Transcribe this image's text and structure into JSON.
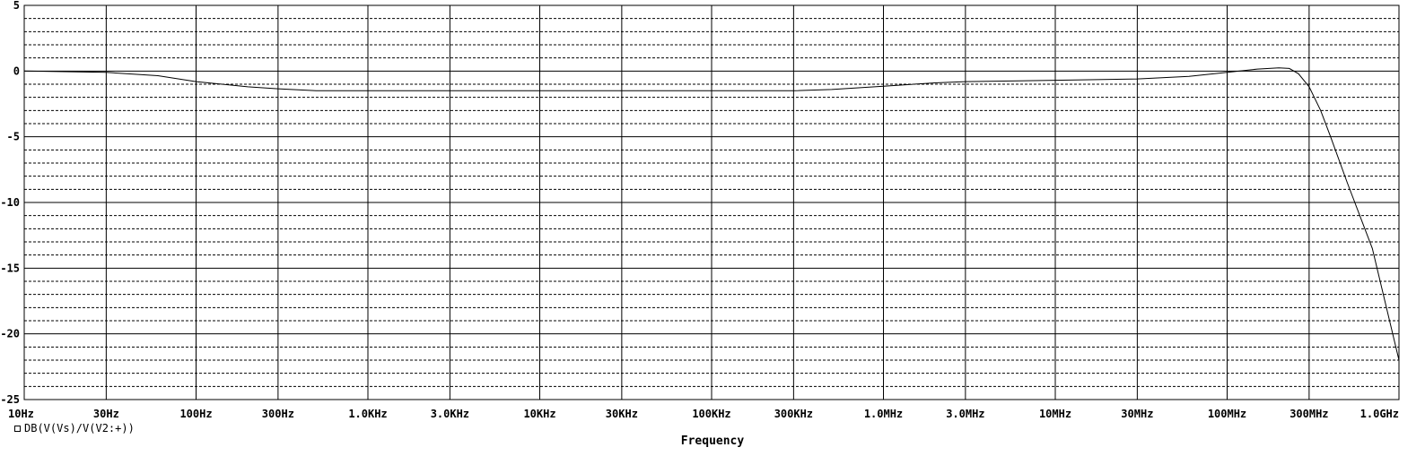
{
  "chart_data": {
    "type": "line",
    "xscale": "log",
    "xlim_hz": [
      10,
      1000000000
    ],
    "ylim": [
      -25,
      5
    ],
    "yticks": [
      5,
      0,
      -5,
      -10,
      -15,
      -20,
      -25
    ],
    "xtick_labels": [
      "10Hz",
      "30Hz",
      "100Hz",
      "300Hz",
      "1.0KHz",
      "3.0KHz",
      "10KHz",
      "30KHz",
      "100KHz",
      "300KHz",
      "1.0MHz",
      "3.0MHz",
      "10MHz",
      "30MHz",
      "100MHz",
      "300MHz",
      "1.0GHz"
    ],
    "xlabel": "Frequency",
    "grid": true,
    "series": [
      {
        "name": "DB(V(Vs)/V(V2:+))",
        "color": "#000000",
        "points": [
          [
            10,
            0.0
          ],
          [
            30,
            -0.1
          ],
          [
            60,
            -0.35
          ],
          [
            100,
            -0.8
          ],
          [
            200,
            -1.2
          ],
          [
            300,
            -1.35
          ],
          [
            500,
            -1.5
          ],
          [
            1000,
            -1.5
          ],
          [
            3000,
            -1.5
          ],
          [
            10000,
            -1.5
          ],
          [
            30000,
            -1.5
          ],
          [
            100000,
            -1.5
          ],
          [
            300000,
            -1.5
          ],
          [
            500000,
            -1.4
          ],
          [
            1000000,
            -1.15
          ],
          [
            2000000,
            -0.9
          ],
          [
            3000000,
            -0.8
          ],
          [
            10000000,
            -0.7
          ],
          [
            30000000,
            -0.6
          ],
          [
            60000000,
            -0.4
          ],
          [
            100000000,
            -0.1
          ],
          [
            150000000,
            0.15
          ],
          [
            200000000,
            0.25
          ],
          [
            230000000,
            0.2
          ],
          [
            260000000,
            -0.2
          ],
          [
            300000000,
            -1.2
          ],
          [
            350000000,
            -3.0
          ],
          [
            400000000,
            -5.0
          ],
          [
            500000000,
            -8.5
          ],
          [
            700000000,
            -13.5
          ],
          [
            1000000000,
            -22.0
          ]
        ]
      }
    ]
  }
}
